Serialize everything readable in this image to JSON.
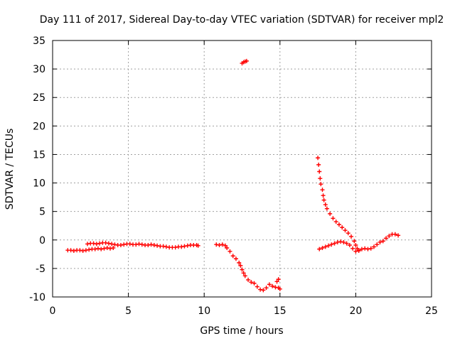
{
  "chart_data": {
    "type": "scatter",
    "title": "Day 111 of 2017, Sidereal Day-to-day VTEC variation (SDTVAR) for receiver mpl2",
    "xlabel": "GPS time / hours",
    "ylabel": "SDTVAR / TECUs",
    "xlim": [
      0,
      25
    ],
    "ylim": [
      -10,
      35
    ],
    "xticks": [
      0,
      5,
      10,
      15,
      20,
      25
    ],
    "yticks": [
      -10,
      -5,
      0,
      5,
      10,
      15,
      20,
      25,
      30,
      35
    ],
    "grid": true,
    "marker": "plus",
    "series_color": "#ff0000",
    "series": [
      {
        "name": "SDTVAR",
        "points": [
          [
            1.0,
            -1.8
          ],
          [
            1.2,
            -1.8
          ],
          [
            1.4,
            -1.9
          ],
          [
            1.6,
            -1.8
          ],
          [
            1.8,
            -1.8
          ],
          [
            2.0,
            -1.9
          ],
          [
            2.2,
            -1.8
          ],
          [
            2.4,
            -1.7
          ],
          [
            2.6,
            -1.6
          ],
          [
            2.8,
            -1.6
          ],
          [
            3.0,
            -1.5
          ],
          [
            3.2,
            -1.6
          ],
          [
            3.4,
            -1.5
          ],
          [
            3.6,
            -1.4
          ],
          [
            3.8,
            -1.5
          ],
          [
            4.0,
            -1.4
          ],
          [
            2.3,
            -0.7
          ],
          [
            2.5,
            -0.6
          ],
          [
            2.7,
            -0.6
          ],
          [
            2.9,
            -0.7
          ],
          [
            3.1,
            -0.6
          ],
          [
            3.3,
            -0.5
          ],
          [
            3.5,
            -0.5
          ],
          [
            3.7,
            -0.6
          ],
          [
            3.9,
            -0.7
          ],
          [
            4.1,
            -0.8
          ],
          [
            4.3,
            -0.9
          ],
          [
            4.5,
            -0.9
          ],
          [
            4.7,
            -0.8
          ],
          [
            4.9,
            -0.7
          ],
          [
            5.1,
            -0.7
          ],
          [
            5.3,
            -0.8
          ],
          [
            5.5,
            -0.8
          ],
          [
            5.7,
            -0.7
          ],
          [
            5.9,
            -0.8
          ],
          [
            6.1,
            -0.9
          ],
          [
            6.3,
            -0.9
          ],
          [
            6.5,
            -0.8
          ],
          [
            6.7,
            -0.9
          ],
          [
            6.9,
            -1.0
          ],
          [
            7.1,
            -1.1
          ],
          [
            7.3,
            -1.1
          ],
          [
            7.5,
            -1.2
          ],
          [
            7.7,
            -1.3
          ],
          [
            7.9,
            -1.3
          ],
          [
            8.1,
            -1.3
          ],
          [
            8.3,
            -1.2
          ],
          [
            8.5,
            -1.2
          ],
          [
            8.7,
            -1.1
          ],
          [
            8.9,
            -1.0
          ],
          [
            9.1,
            -0.9
          ],
          [
            9.3,
            -0.9
          ],
          [
            9.5,
            -0.9
          ],
          [
            9.6,
            -1.0
          ],
          [
            12.5,
            31.0
          ],
          [
            12.6,
            31.2
          ],
          [
            12.7,
            31.3
          ],
          [
            12.8,
            31.4
          ],
          [
            10.8,
            -0.8
          ],
          [
            11.0,
            -0.9
          ],
          [
            11.2,
            -0.8
          ],
          [
            11.4,
            -1.0
          ],
          [
            11.5,
            -1.4
          ],
          [
            11.7,
            -2.0
          ],
          [
            11.9,
            -2.8
          ],
          [
            12.1,
            -3.3
          ],
          [
            12.3,
            -4.0
          ],
          [
            12.4,
            -4.5
          ],
          [
            12.5,
            -5.2
          ],
          [
            12.6,
            -5.8
          ],
          [
            12.7,
            -6.3
          ],
          [
            12.9,
            -7.0
          ],
          [
            13.1,
            -7.4
          ],
          [
            13.3,
            -7.6
          ],
          [
            13.5,
            -8.2
          ],
          [
            13.7,
            -8.7
          ],
          [
            13.9,
            -8.8
          ],
          [
            14.1,
            -8.4
          ],
          [
            14.3,
            -7.8
          ],
          [
            14.5,
            -8.1
          ],
          [
            14.7,
            -8.3
          ],
          [
            14.9,
            -8.4
          ],
          [
            15.0,
            -8.6
          ],
          [
            14.8,
            -7.3
          ],
          [
            14.9,
            -6.9
          ],
          [
            17.5,
            14.4
          ],
          [
            17.55,
            13.2
          ],
          [
            17.6,
            12.0
          ],
          [
            17.65,
            10.8
          ],
          [
            17.7,
            9.8
          ],
          [
            17.8,
            8.8
          ],
          [
            17.85,
            7.8
          ],
          [
            17.9,
            7.0
          ],
          [
            18.0,
            6.2
          ],
          [
            18.1,
            5.5
          ],
          [
            18.3,
            4.6
          ],
          [
            18.5,
            3.8
          ],
          [
            18.7,
            3.2
          ],
          [
            18.9,
            2.7
          ],
          [
            19.1,
            2.2
          ],
          [
            19.3,
            1.7
          ],
          [
            19.5,
            1.2
          ],
          [
            19.7,
            0.6
          ],
          [
            19.9,
            -0.2
          ],
          [
            20.0,
            -0.9
          ],
          [
            20.1,
            -1.5
          ],
          [
            20.2,
            -1.8
          ],
          [
            17.6,
            -1.6
          ],
          [
            17.8,
            -1.4
          ],
          [
            18.0,
            -1.2
          ],
          [
            18.2,
            -1.0
          ],
          [
            18.4,
            -0.8
          ],
          [
            18.6,
            -0.6
          ],
          [
            18.8,
            -0.4
          ],
          [
            19.0,
            -0.3
          ],
          [
            19.2,
            -0.4
          ],
          [
            19.4,
            -0.6
          ],
          [
            19.6,
            -0.9
          ],
          [
            19.8,
            -1.5
          ],
          [
            20.0,
            -2.0
          ],
          [
            20.2,
            -1.9
          ],
          [
            20.4,
            -1.6
          ],
          [
            20.6,
            -1.5
          ],
          [
            20.8,
            -1.6
          ],
          [
            21.0,
            -1.5
          ],
          [
            21.2,
            -1.2
          ],
          [
            21.4,
            -0.8
          ],
          [
            21.6,
            -0.4
          ],
          [
            21.8,
            -0.2
          ],
          [
            22.0,
            0.3
          ],
          [
            22.2,
            0.7
          ],
          [
            22.4,
            1.0
          ],
          [
            22.6,
            1.0
          ],
          [
            22.8,
            0.8
          ]
        ]
      }
    ]
  }
}
